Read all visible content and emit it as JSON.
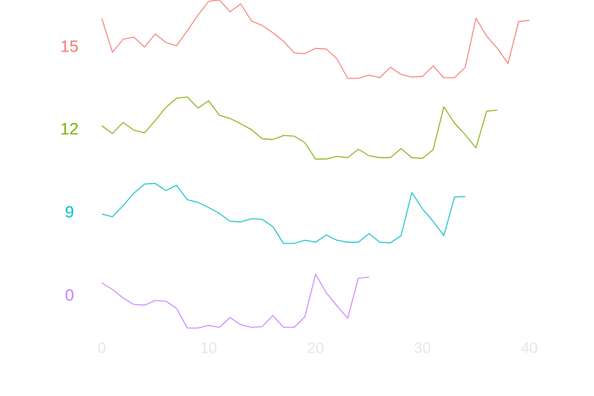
{
  "chart_data": {
    "type": "line",
    "title": "",
    "xlabel": "",
    "ylabel": "",
    "x_ticks": [
      "0",
      "10",
      "20",
      "30",
      "40"
    ],
    "xlim": [
      0,
      40
    ],
    "grid": false,
    "legend": "none",
    "series": [
      {
        "label": "15",
        "color": "#F8766D",
        "values": [
          0.92,
          0.4,
          0.6,
          0.63,
          0.48,
          0.68,
          0.55,
          0.5,
          0.73,
          0.97,
          1.18,
          1.2,
          1.02,
          1.14,
          0.88,
          0.81,
          0.7,
          0.57,
          0.39,
          0.38,
          0.46,
          0.45,
          0.3,
          0.0,
          0.0,
          0.05,
          0.01,
          0.17,
          0.06,
          0.02,
          0.03,
          0.19,
          0.01,
          0.01,
          0.17,
          0.92,
          0.65,
          0.46,
          0.23,
          0.87,
          0.89
        ]
      },
      {
        "label": "12",
        "color": "#7CAE00",
        "values": [
          0.56,
          0.44,
          0.61,
          0.49,
          0.45,
          0.64,
          0.84,
          0.98,
          1.0,
          0.83,
          0.94,
          0.72,
          0.67,
          0.59,
          0.5,
          0.36,
          0.35,
          0.41,
          0.4,
          0.3,
          0.05,
          0.05,
          0.09,
          0.07,
          0.2,
          0.1,
          0.07,
          0.07,
          0.21,
          0.07,
          0.06,
          0.19,
          0.85,
          0.6,
          0.42,
          0.22,
          0.78,
          0.8
        ]
      },
      {
        "label": "9",
        "color": "#00BFC4",
        "values": [
          0.48,
          0.44,
          0.61,
          0.8,
          0.94,
          0.95,
          0.84,
          0.92,
          0.7,
          0.66,
          0.58,
          0.49,
          0.37,
          0.36,
          0.41,
          0.4,
          0.29,
          0.03,
          0.03,
          0.08,
          0.05,
          0.16,
          0.08,
          0.05,
          0.05,
          0.18,
          0.05,
          0.04,
          0.15,
          0.81,
          0.56,
          0.37,
          0.15,
          0.74,
          0.75
        ]
      },
      {
        "label": "0",
        "color": "#C77CFF",
        "values": [
          0.7,
          0.6,
          0.47,
          0.37,
          0.36,
          0.43,
          0.42,
          0.31,
          0.01,
          0.01,
          0.05,
          0.02,
          0.17,
          0.06,
          0.02,
          0.03,
          0.2,
          0.02,
          0.02,
          0.18,
          0.83,
          0.55,
          0.35,
          0.16,
          0.77,
          0.79
        ]
      }
    ]
  }
}
